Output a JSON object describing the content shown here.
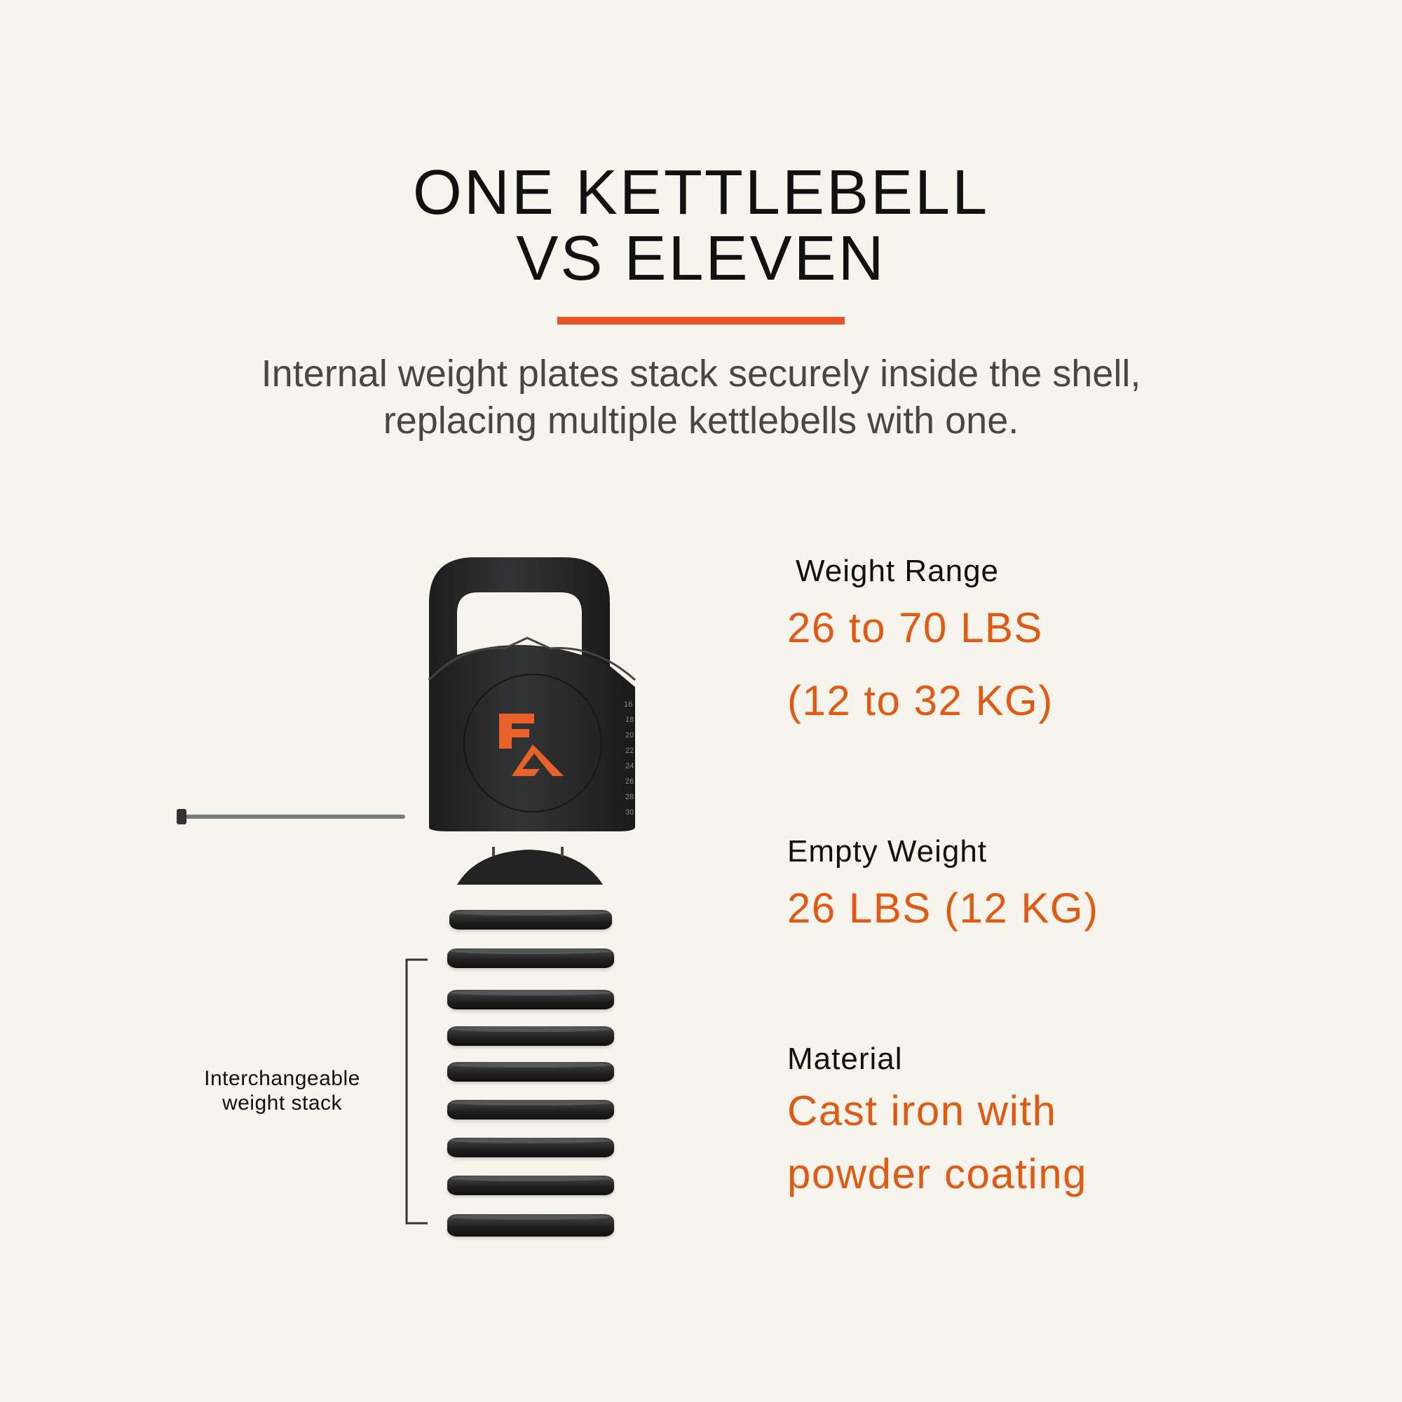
{
  "header": {
    "title_line1": "ONE KETTLEBELL",
    "title_line2": "VS ELEVEN",
    "subtitle_line1": "Internal weight plates stack securely inside the shell,",
    "subtitle_line2": "replacing multiple kettlebells with one."
  },
  "product": {
    "logo": "FA",
    "scale_marks": [
      "16",
      "18",
      "20",
      "22",
      "24",
      "26",
      "28",
      "30"
    ],
    "stack_label_line1": "Interchangeable",
    "stack_label_line2": "weight stack",
    "plate_count": 9
  },
  "specs": [
    {
      "label": "Weight Range",
      "value_line1": "26 to 70 LBS",
      "value_line2": "(12 to 32 KG)"
    },
    {
      "label": "Empty Weight",
      "value_line1": "26 LBS (12 KG)"
    },
    {
      "label": "Material",
      "value_line1": "Cast iron with",
      "value_line2": "powder coating"
    }
  ],
  "colors": {
    "background": "#f7f3ed",
    "accent": "#e05a14",
    "divider": "#e8532a",
    "product": "#2a2a2b"
  }
}
